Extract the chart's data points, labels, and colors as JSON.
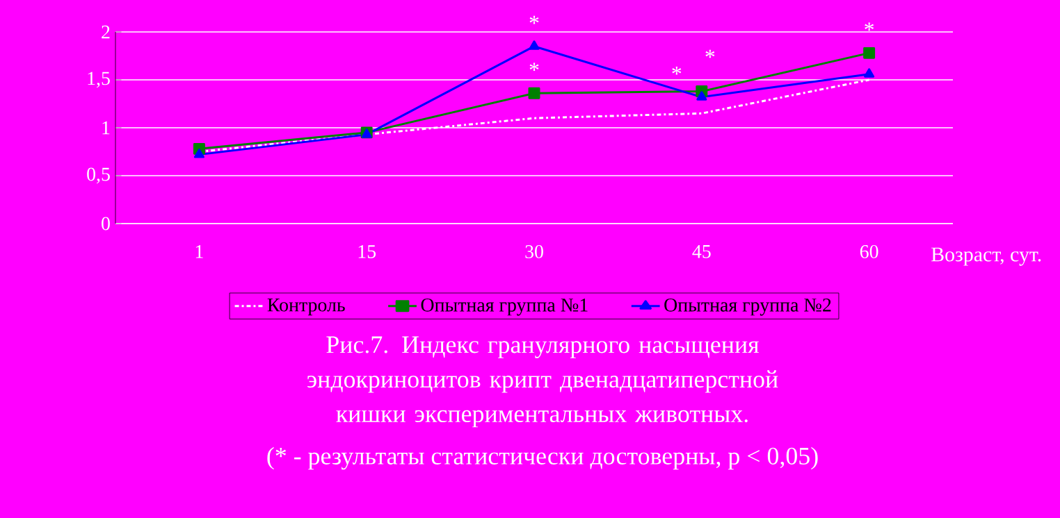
{
  "chart_data": {
    "type": "line",
    "title": "Рис.7. Индекс гранулярного насыщения эндокриноцитов крипт двенадцатиперстной кишки экспериментальных животных.",
    "xlabel": "Возраст, сут.",
    "categories": [
      "1",
      "15",
      "30",
      "45",
      "60"
    ],
    "series": [
      {
        "name": "Контроль",
        "color": "#ffffff",
        "marker": "none",
        "line_style": "dashed",
        "values": [
          0.75,
          0.93,
          1.1,
          1.15,
          1.5
        ]
      },
      {
        "name": "Опытная группа №1",
        "color": "#008000",
        "marker": "square",
        "line_style": "solid",
        "values": [
          0.78,
          0.95,
          1.36,
          1.38,
          1.78
        ]
      },
      {
        "name": "Опытная группа №2",
        "color": "#0000ff",
        "marker": "triangle",
        "line_style": "solid",
        "values": [
          0.72,
          0.93,
          1.85,
          1.32,
          1.56
        ]
      }
    ],
    "ylim": [
      0,
      2
    ],
    "yticks": [
      0,
      {
        "value": 0.5,
        "label": "0,5"
      },
      1,
      {
        "value": 1.5,
        "label": "1,5"
      },
      2
    ],
    "grid": "y",
    "legend": "bottom",
    "annotations": [
      {
        "text": "*",
        "x": "30",
        "y": 1.85
      },
      {
        "text": "*",
        "x": "30",
        "y": 1.36
      },
      {
        "text": "*",
        "x": "45",
        "y": 1.32
      },
      {
        "text": "*",
        "x": "45",
        "y": 1.38
      },
      {
        "text": "*",
        "x": "60",
        "y": 1.78
      },
      "(* - результаты статистически достоверны, p < 0,05)"
    ]
  }
}
